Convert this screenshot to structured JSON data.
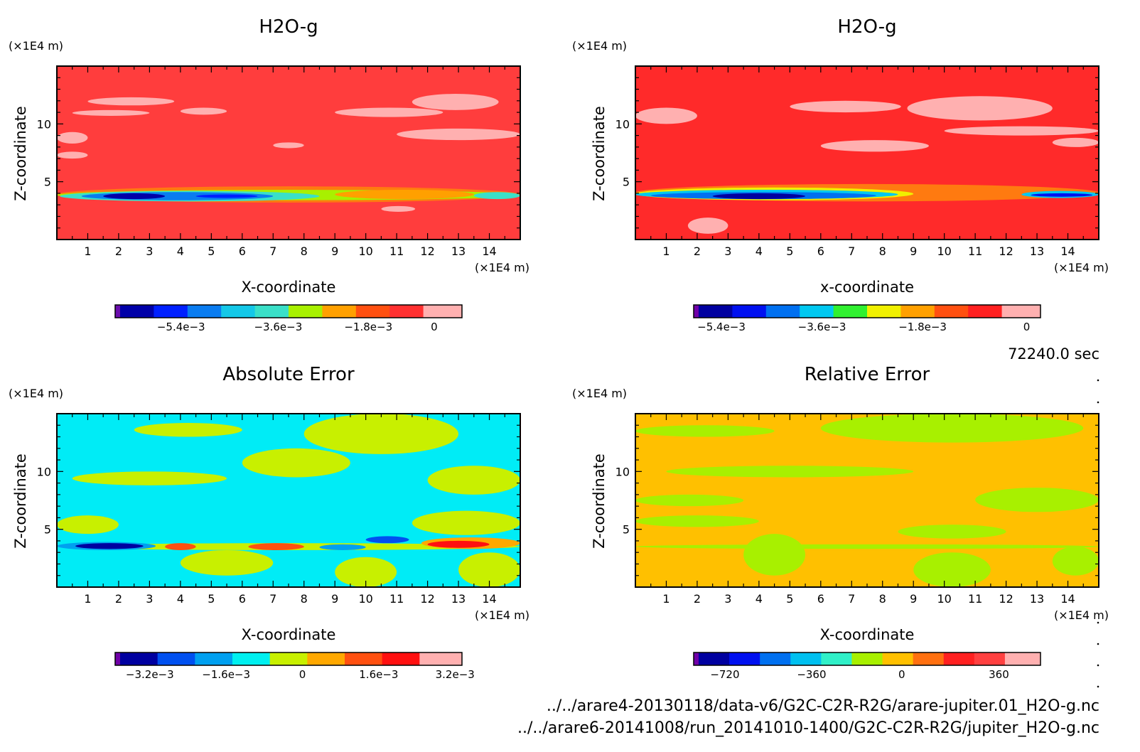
{
  "time_label": "72240.0 sec",
  "file_paths": [
    "../../arare4-20130118/data-v6/G2C-C2R-R2G/arare-jupiter.01_H2O-g.nc",
    "../../arare6-20141008/run_20141010-1400/G2C-C2R-R2G/jupiter_H2O-g.nc"
  ],
  "chart_data": [
    {
      "type": "heatmap",
      "title": "H2O-g",
      "xlabel": "X-coordinate",
      "ylabel": "Z-coordinate",
      "unit_x": "(×1E4 m)",
      "unit_y": "(×1E4 m)",
      "xticks": [
        "1",
        "2",
        "3",
        "4",
        "5",
        "6",
        "7",
        "8",
        "9",
        "10",
        "11",
        "12",
        "13",
        "14"
      ],
      "yticks": [
        "5",
        "10"
      ],
      "xlim": [
        0,
        15
      ],
      "ylim": [
        0,
        15
      ],
      "colors": [
        "#6a0dad",
        "#0000a8",
        "#0020ff",
        "#0a7cf0",
        "#14c8e8",
        "#3ae0c8",
        "#a8f000",
        "#ffa000",
        "#ff5010",
        "#ff3030",
        "#ffb0b0"
      ],
      "colorbar_ticks": [
        "−5.4e−3",
        "−3.6e−3",
        "−1.8e−3",
        "0"
      ],
      "background": "#ff3d3d",
      "features": [
        {
          "x0": 0,
          "x1": 15,
          "y0": 3.2,
          "y1": 4.6,
          "color": "#ff7a10"
        },
        {
          "x0": 0,
          "x1": 15,
          "y0": 3.4,
          "y1": 4.3,
          "color": "#a8f000"
        },
        {
          "x0": 0.1,
          "x1": 8.5,
          "y0": 3.3,
          "y1": 4.2,
          "color": "#3ae0c8"
        },
        {
          "x0": 0.8,
          "x1": 7.0,
          "y0": 3.4,
          "y1": 4.1,
          "color": "#0a7cf0"
        },
        {
          "x0": 1.5,
          "x1": 3.5,
          "y0": 3.5,
          "y1": 4.0,
          "color": "#0000a8"
        },
        {
          "x0": 4.5,
          "x1": 6.5,
          "y0": 3.6,
          "y1": 3.9,
          "color": "#0020ff"
        },
        {
          "x0": 13.5,
          "x1": 15,
          "y0": 3.5,
          "y1": 4.1,
          "color": "#3ae0c8"
        },
        {
          "x0": 9.0,
          "x1": 13.5,
          "y0": 3.5,
          "y1": 4.3,
          "color": "#ffa000"
        },
        {
          "x0": 1.0,
          "x1": 3.8,
          "y0": 11.6,
          "y1": 12.3,
          "color": "#ffb0b0"
        },
        {
          "x0": 0.5,
          "x1": 3.0,
          "y0": 10.7,
          "y1": 11.2,
          "color": "#ffb0b0"
        },
        {
          "x0": 4.0,
          "x1": 5.5,
          "y0": 10.8,
          "y1": 11.4,
          "color": "#ffb0b0"
        },
        {
          "x0": 9.0,
          "x1": 12.5,
          "y0": 10.6,
          "y1": 11.4,
          "color": "#ffb0b0"
        },
        {
          "x0": 11.5,
          "x1": 14.3,
          "y0": 11.2,
          "y1": 12.6,
          "color": "#ffb0b0"
        },
        {
          "x0": 11.0,
          "x1": 15,
          "y0": 8.6,
          "y1": 9.6,
          "color": "#ffb0b0"
        },
        {
          "x0": 0,
          "x1": 1.0,
          "y0": 8.3,
          "y1": 9.3,
          "color": "#ffb0b0"
        },
        {
          "x0": 0,
          "x1": 1.0,
          "y0": 7.0,
          "y1": 7.6,
          "color": "#ffb0b0"
        },
        {
          "x0": 7.0,
          "x1": 8.0,
          "y0": 7.9,
          "y1": 8.4,
          "color": "#ffb0b0"
        },
        {
          "x0": 10.5,
          "x1": 11.6,
          "y0": 2.4,
          "y1": 2.9,
          "color": "#ffb0b0"
        }
      ]
    },
    {
      "type": "heatmap",
      "title": "H2O-g",
      "xlabel": "x-coordinate",
      "ylabel": "Z-coordinate",
      "unit_x": "(×1E4 m)",
      "unit_y": "(×1E4 m)",
      "xticks": [
        "1",
        "2",
        "3",
        "4",
        "5",
        "6",
        "7",
        "8",
        "9",
        "10",
        "11",
        "12",
        "13",
        "14"
      ],
      "yticks": [
        "5",
        "10"
      ],
      "xlim": [
        0,
        15
      ],
      "ylim": [
        0,
        15
      ],
      "colors": [
        "#7000a8",
        "#0000a0",
        "#0010f0",
        "#0070f0",
        "#00c8f0",
        "#30f030",
        "#f0f000",
        "#ffa000",
        "#ff5010",
        "#ff2020",
        "#ffb0b0"
      ],
      "colorbar_ticks": [
        "−5.4e−3",
        "−3.6e−3",
        "−1.8e−3",
        "0"
      ],
      "background": "#ff2a2a",
      "features": [
        {
          "x0": 0,
          "x1": 15,
          "y0": 3.3,
          "y1": 4.8,
          "color": "#ff7a10"
        },
        {
          "x0": 0,
          "x1": 9.0,
          "y0": 3.4,
          "y1": 4.5,
          "color": "#f0f000"
        },
        {
          "x0": 0,
          "x1": 8.5,
          "y0": 3.5,
          "y1": 4.3,
          "color": "#00c8f0"
        },
        {
          "x0": 0.5,
          "x1": 7.8,
          "y0": 3.5,
          "y1": 4.1,
          "color": "#0070f0"
        },
        {
          "x0": 2.5,
          "x1": 5.5,
          "y0": 3.5,
          "y1": 4.0,
          "color": "#0000a0"
        },
        {
          "x0": 12.5,
          "x1": 15,
          "y0": 3.6,
          "y1": 4.2,
          "color": "#00c8f0"
        },
        {
          "x0": 12.8,
          "x1": 14.8,
          "y0": 3.7,
          "y1": 4.0,
          "color": "#0010f0"
        },
        {
          "x0": 1.7,
          "x1": 3.0,
          "y0": 0.5,
          "y1": 1.9,
          "color": "#ffb0b0"
        },
        {
          "x0": 0,
          "x1": 2.0,
          "y0": 10.0,
          "y1": 11.4,
          "color": "#ffb0b0"
        },
        {
          "x0": 5.0,
          "x1": 8.6,
          "y0": 11.0,
          "y1": 12.0,
          "color": "#ffb0b0"
        },
        {
          "x0": 8.8,
          "x1": 13.5,
          "y0": 10.3,
          "y1": 12.4,
          "color": "#ffb0b0"
        },
        {
          "x0": 10.0,
          "x1": 15,
          "y0": 9.0,
          "y1": 9.8,
          "color": "#ffb0b0"
        },
        {
          "x0": 6.0,
          "x1": 9.5,
          "y0": 7.6,
          "y1": 8.6,
          "color": "#ffb0b0"
        },
        {
          "x0": 13.5,
          "x1": 15,
          "y0": 8.0,
          "y1": 8.8,
          "color": "#ffb0b0"
        }
      ]
    },
    {
      "type": "heatmap",
      "title": "Absolute Error",
      "xlabel": "X-coordinate",
      "ylabel": "Z-coordinate",
      "unit_x": "(×1E4 m)",
      "unit_y": "(×1E4 m)",
      "xticks": [
        "1",
        "2",
        "3",
        "4",
        "5",
        "6",
        "7",
        "8",
        "9",
        "10",
        "11",
        "12",
        "13",
        "14"
      ],
      "yticks": [
        "5",
        "10"
      ],
      "xlim": [
        0,
        15
      ],
      "ylim": [
        0,
        15
      ],
      "colors": [
        "#7000a8",
        "#0000a0",
        "#0050f0",
        "#00a0f0",
        "#00f0f0",
        "#c8f000",
        "#ffa800",
        "#ff5010",
        "#ff1010",
        "#ffb0b0"
      ],
      "colorbar_ticks": [
        "−3.2e−3",
        "−1.6e−3",
        "0",
        "1.6e−3",
        "3.2e−3"
      ],
      "background": "#00ecf6",
      "features": [
        {
          "x0": 8.0,
          "x1": 13.0,
          "y0": 11.5,
          "y1": 15,
          "color": "#c8f000"
        },
        {
          "x0": 2.5,
          "x1": 6.0,
          "y0": 13.0,
          "y1": 14.2,
          "color": "#c8f000"
        },
        {
          "x0": 6.0,
          "x1": 9.5,
          "y0": 9.5,
          "y1": 12.0,
          "color": "#c8f000"
        },
        {
          "x0": 0.5,
          "x1": 5.5,
          "y0": 8.8,
          "y1": 10.0,
          "color": "#c8f000"
        },
        {
          "x0": 12.0,
          "x1": 15,
          "y0": 8.0,
          "y1": 10.5,
          "color": "#c8f000"
        },
        {
          "x0": 11.5,
          "x1": 15,
          "y0": 4.5,
          "y1": 6.6,
          "color": "#c8f000"
        },
        {
          "x0": 0,
          "x1": 2.0,
          "y0": 4.6,
          "y1": 6.2,
          "color": "#c8f000"
        },
        {
          "x0": 4.0,
          "x1": 7.0,
          "y0": 1.0,
          "y1": 3.2,
          "color": "#c8f000"
        },
        {
          "x0": 9.0,
          "x1": 11.0,
          "y0": 0,
          "y1": 2.6,
          "color": "#c8f000"
        },
        {
          "x0": 13.0,
          "x1": 15,
          "y0": 0,
          "y1": 3.0,
          "color": "#c8f000"
        },
        {
          "x0": 0,
          "x1": 15,
          "y0": 3.2,
          "y1": 3.8,
          "color": "#c8f000"
        },
        {
          "x0": 0,
          "x1": 3.2,
          "y0": 3.2,
          "y1": 3.9,
          "color": "#00a0f0"
        },
        {
          "x0": 0.6,
          "x1": 2.8,
          "y0": 3.3,
          "y1": 3.8,
          "color": "#0000a0"
        },
        {
          "x0": 10.0,
          "x1": 11.4,
          "y0": 3.8,
          "y1": 4.4,
          "color": "#0050f0"
        },
        {
          "x0": 8.5,
          "x1": 10.0,
          "y0": 3.2,
          "y1": 3.7,
          "color": "#00a0f0"
        },
        {
          "x0": 3.5,
          "x1": 4.5,
          "y0": 3.2,
          "y1": 3.8,
          "color": "#ff5010"
        },
        {
          "x0": 6.2,
          "x1": 8.0,
          "y0": 3.2,
          "y1": 3.8,
          "color": "#ff5010"
        },
        {
          "x0": 11.8,
          "x1": 15,
          "y0": 3.3,
          "y1": 4.3,
          "color": "#ffa800"
        },
        {
          "x0": 12.0,
          "x1": 14.0,
          "y0": 3.4,
          "y1": 4.0,
          "color": "#ff1010"
        }
      ]
    },
    {
      "type": "heatmap",
      "title": "Relative Error",
      "xlabel": "X-coordinate",
      "ylabel": "Z-coordinate",
      "unit_x": "(×1E4 m)",
      "unit_y": "(×1E4 m)",
      "xticks": [
        "1",
        "2",
        "3",
        "4",
        "5",
        "6",
        "7",
        "8",
        "9",
        "10",
        "11",
        "12",
        "13",
        "14"
      ],
      "yticks": [
        "5",
        "10"
      ],
      "xlim": [
        0,
        15
      ],
      "ylim": [
        0,
        15
      ],
      "colors": [
        "#7000a8",
        "#0000a0",
        "#0010f0",
        "#0070f0",
        "#00c0f0",
        "#30f0c8",
        "#a8f000",
        "#ffc000",
        "#ff7010",
        "#ff2020",
        "#ff4040",
        "#ffb0b0"
      ],
      "colorbar_ticks": [
        "−720",
        "−360",
        "0",
        "360"
      ],
      "background": "#ffc000",
      "features": [
        {
          "x0": 6.0,
          "x1": 14.5,
          "y0": 12.5,
          "y1": 15,
          "color": "#a8f000"
        },
        {
          "x0": 0,
          "x1": 4.5,
          "y0": 13.0,
          "y1": 14.0,
          "color": "#a8f000"
        },
        {
          "x0": 1.0,
          "x1": 9.0,
          "y0": 9.5,
          "y1": 10.5,
          "color": "#a8f000"
        },
        {
          "x0": 0,
          "x1": 3.5,
          "y0": 7.0,
          "y1": 8.0,
          "color": "#a8f000"
        },
        {
          "x0": 11.0,
          "x1": 15,
          "y0": 6.5,
          "y1": 8.6,
          "color": "#a8f000"
        },
        {
          "x0": 0,
          "x1": 4.0,
          "y0": 5.2,
          "y1": 6.2,
          "color": "#a8f000"
        },
        {
          "x0": 8.5,
          "x1": 12.0,
          "y0": 4.2,
          "y1": 5.4,
          "color": "#a8f000"
        },
        {
          "x0": 3.5,
          "x1": 5.5,
          "y0": 1.0,
          "y1": 4.6,
          "color": "#a8f000"
        },
        {
          "x0": 9.0,
          "x1": 11.5,
          "y0": 0,
          "y1": 3.0,
          "color": "#a8f000"
        },
        {
          "x0": 13.5,
          "x1": 15,
          "y0": 1.0,
          "y1": 3.5,
          "color": "#a8f000"
        },
        {
          "x0": 0,
          "x1": 15,
          "y0": 3.3,
          "y1": 3.7,
          "color": "#a8f000"
        }
      ]
    }
  ]
}
